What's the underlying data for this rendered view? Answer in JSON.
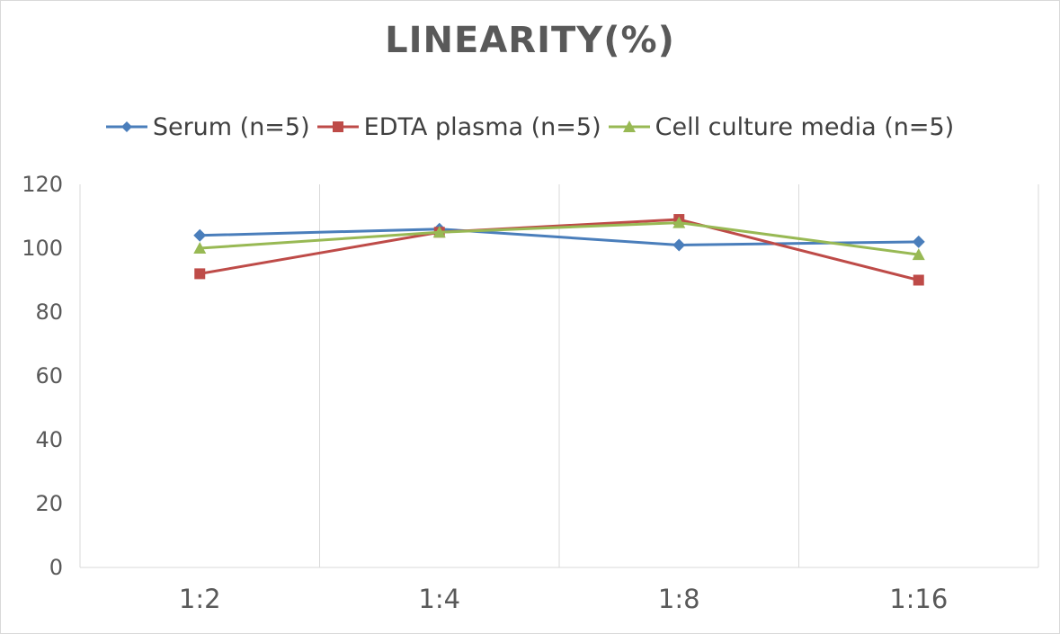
{
  "chart_data": {
    "type": "line",
    "title": "LINEARITY(%)",
    "xlabel": "",
    "ylabel": "",
    "categories": [
      "1:2",
      "1:4",
      "1:8",
      "1:16"
    ],
    "ylim": [
      0,
      120
    ],
    "yticks": [
      "0",
      "20",
      "40",
      "60",
      "80",
      "100",
      "120"
    ],
    "grid": "vertical",
    "legend_position": "top",
    "series": [
      {
        "name": "Serum (n=5)",
        "values": [
          104,
          106,
          101,
          102
        ],
        "color": "#4a7ebb",
        "marker": "diamond"
      },
      {
        "name": "EDTA plasma (n=5)",
        "values": [
          92,
          105,
          109,
          90
        ],
        "color": "#be4b48",
        "marker": "square"
      },
      {
        "name": "Cell culture media (n=5)",
        "values": [
          100,
          105,
          108,
          98
        ],
        "color": "#98b954",
        "marker": "triangle"
      }
    ]
  }
}
